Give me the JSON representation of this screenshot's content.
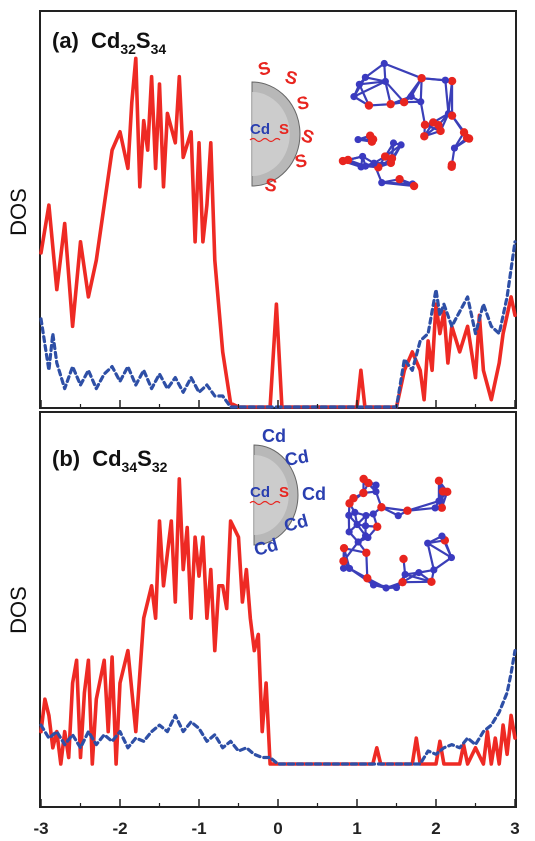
{
  "chart_data": [
    {
      "type": "line",
      "panel": "(a)",
      "title": {
        "label": "(a)",
        "el1": "Cd",
        "n1": "32",
        "el2": "S",
        "n2": "34"
      },
      "ylabel": "DOS",
      "xlim": [
        -3,
        3
      ],
      "ylim": [
        0,
        1
      ],
      "shell_label": "S",
      "core_label": {
        "cd": "Cd",
        "s": "S"
      },
      "series": [
        {
          "color": "#ee2a24",
          "style": "solid",
          "points": [
            [
              -3.0,
              0.42
            ],
            [
              -2.9,
              0.55
            ],
            [
              -2.8,
              0.32
            ],
            [
              -2.7,
              0.5
            ],
            [
              -2.6,
              0.22
            ],
            [
              -2.5,
              0.45
            ],
            [
              -2.4,
              0.3
            ],
            [
              -2.3,
              0.4
            ],
            [
              -2.2,
              0.55
            ],
            [
              -2.1,
              0.7
            ],
            [
              -2.0,
              0.75
            ],
            [
              -1.9,
              0.65
            ],
            [
              -1.85,
              0.83
            ],
            [
              -1.8,
              0.95
            ],
            [
              -1.75,
              0.6
            ],
            [
              -1.7,
              0.78
            ],
            [
              -1.65,
              0.7
            ],
            [
              -1.6,
              0.9
            ],
            [
              -1.55,
              0.65
            ],
            [
              -1.5,
              0.88
            ],
            [
              -1.45,
              0.6
            ],
            [
              -1.4,
              0.8
            ],
            [
              -1.3,
              0.72
            ],
            [
              -1.25,
              0.9
            ],
            [
              -1.2,
              0.68
            ],
            [
              -1.1,
              0.75
            ],
            [
              -1.05,
              0.45
            ],
            [
              -1.0,
              0.72
            ],
            [
              -0.95,
              0.45
            ],
            [
              -0.9,
              0.55
            ],
            [
              -0.85,
              0.72
            ],
            [
              -0.8,
              0.4
            ],
            [
              -0.7,
              0.15
            ],
            [
              -0.6,
              0.01
            ],
            [
              -0.5,
              0.0
            ],
            [
              -0.3,
              0.0
            ],
            [
              -0.1,
              0.0
            ],
            [
              -0.02,
              0.28
            ],
            [
              0.05,
              0.0
            ],
            [
              0.5,
              0.0
            ],
            [
              1.0,
              0.0
            ],
            [
              1.05,
              0.1
            ],
            [
              1.1,
              0.0
            ],
            [
              1.5,
              0.0
            ],
            [
              1.6,
              0.1
            ],
            [
              1.7,
              0.15
            ],
            [
              1.8,
              0.1
            ],
            [
              1.85,
              0.02
            ],
            [
              1.9,
              0.18
            ],
            [
              1.95,
              0.1
            ],
            [
              2.0,
              0.28
            ],
            [
              2.05,
              0.2
            ],
            [
              2.1,
              0.26
            ],
            [
              2.15,
              0.12
            ],
            [
              2.2,
              0.22
            ],
            [
              2.3,
              0.15
            ],
            [
              2.4,
              0.22
            ],
            [
              2.5,
              0.08
            ],
            [
              2.55,
              0.25
            ],
            [
              2.6,
              0.1
            ],
            [
              2.7,
              0.02
            ],
            [
              2.8,
              0.12
            ],
            [
              2.85,
              0.2
            ],
            [
              2.95,
              0.3
            ],
            [
              3.0,
              0.25
            ]
          ]
        },
        {
          "color": "#2e4fa6",
          "style": "dashed",
          "points": [
            [
              -3.0,
              0.24
            ],
            [
              -2.9,
              0.1
            ],
            [
              -2.85,
              0.2
            ],
            [
              -2.8,
              0.12
            ],
            [
              -2.7,
              0.05
            ],
            [
              -2.6,
              0.11
            ],
            [
              -2.5,
              0.06
            ],
            [
              -2.4,
              0.1
            ],
            [
              -2.3,
              0.05
            ],
            [
              -2.2,
              0.09
            ],
            [
              -2.1,
              0.11
            ],
            [
              -2.0,
              0.07
            ],
            [
              -1.9,
              0.11
            ],
            [
              -1.8,
              0.06
            ],
            [
              -1.7,
              0.1
            ],
            [
              -1.6,
              0.05
            ],
            [
              -1.5,
              0.09
            ],
            [
              -1.4,
              0.05
            ],
            [
              -1.3,
              0.08
            ],
            [
              -1.2,
              0.04
            ],
            [
              -1.1,
              0.08
            ],
            [
              -1.0,
              0.04
            ],
            [
              -0.9,
              0.06
            ],
            [
              -0.8,
              0.03
            ],
            [
              -0.7,
              0.03
            ],
            [
              -0.6,
              0.0
            ],
            [
              1.5,
              0.0
            ],
            [
              1.6,
              0.13
            ],
            [
              1.7,
              0.1
            ],
            [
              1.8,
              0.18
            ],
            [
              1.9,
              0.2
            ],
            [
              2.0,
              0.32
            ],
            [
              2.05,
              0.25
            ],
            [
              2.1,
              0.28
            ],
            [
              2.2,
              0.22
            ],
            [
              2.3,
              0.26
            ],
            [
              2.4,
              0.3
            ],
            [
              2.5,
              0.2
            ],
            [
              2.6,
              0.28
            ],
            [
              2.7,
              0.22
            ],
            [
              2.8,
              0.2
            ],
            [
              2.9,
              0.3
            ],
            [
              3.0,
              0.45
            ]
          ]
        }
      ]
    },
    {
      "type": "line",
      "panel": "(b)",
      "title": {
        "label": "(b)",
        "el1": "Cd",
        "n1": "34",
        "el2": "S",
        "n2": "32"
      },
      "ylabel": "DOS",
      "xlim": [
        -3,
        3
      ],
      "ylim": [
        0,
        1
      ],
      "shell_label": "Cd",
      "core_label": {
        "cd": "Cd",
        "s": "S"
      },
      "x_ticks": [
        "-3",
        "-2",
        "-1",
        "0",
        "1",
        "2",
        "3"
      ],
      "series": [
        {
          "color": "#ee2a24",
          "style": "solid",
          "points": [
            [
              -3.0,
              0.1
            ],
            [
              -2.95,
              0.2
            ],
            [
              -2.9,
              0.15
            ],
            [
              -2.85,
              0.05
            ],
            [
              -2.8,
              0.1
            ],
            [
              -2.75,
              0.0
            ],
            [
              -2.7,
              0.1
            ],
            [
              -2.65,
              0.02
            ],
            [
              -2.6,
              0.25
            ],
            [
              -2.55,
              0.32
            ],
            [
              -2.5,
              0.02
            ],
            [
              -2.45,
              0.22
            ],
            [
              -2.4,
              0.32
            ],
            [
              -2.35,
              0.0
            ],
            [
              -2.3,
              0.2
            ],
            [
              -2.2,
              0.32
            ],
            [
              -2.15,
              0.1
            ],
            [
              -2.1,
              0.33
            ],
            [
              -2.05,
              0.0
            ],
            [
              -2.0,
              0.25
            ],
            [
              -1.9,
              0.35
            ],
            [
              -1.8,
              0.1
            ],
            [
              -1.7,
              0.45
            ],
            [
              -1.6,
              0.55
            ],
            [
              -1.55,
              0.45
            ],
            [
              -1.5,
              0.75
            ],
            [
              -1.45,
              0.55
            ],
            [
              -1.4,
              0.65
            ],
            [
              -1.35,
              0.75
            ],
            [
              -1.3,
              0.5
            ],
            [
              -1.25,
              0.88
            ],
            [
              -1.2,
              0.6
            ],
            [
              -1.15,
              0.73
            ],
            [
              -1.1,
              0.45
            ],
            [
              -1.05,
              0.7
            ],
            [
              -1.0,
              0.58
            ],
            [
              -0.95,
              0.7
            ],
            [
              -0.9,
              0.45
            ],
            [
              -0.85,
              0.6
            ],
            [
              -0.8,
              0.35
            ],
            [
              -0.75,
              0.55
            ],
            [
              -0.7,
              0.55
            ],
            [
              -0.65,
              0.48
            ],
            [
              -0.6,
              0.75
            ],
            [
              -0.5,
              0.7
            ],
            [
              -0.45,
              0.5
            ],
            [
              -0.4,
              0.6
            ],
            [
              -0.35,
              0.45
            ],
            [
              -0.3,
              0.35
            ],
            [
              -0.25,
              0.4
            ],
            [
              -0.2,
              0.1
            ],
            [
              -0.15,
              0.25
            ],
            [
              -0.1,
              0.0
            ],
            [
              0.0,
              0.0
            ],
            [
              0.5,
              0.0
            ],
            [
              1.0,
              0.0
            ],
            [
              1.2,
              0.0
            ],
            [
              1.25,
              0.05
            ],
            [
              1.3,
              0.0
            ],
            [
              1.7,
              0.0
            ],
            [
              1.75,
              0.08
            ],
            [
              1.8,
              0.0
            ],
            [
              2.0,
              0.0
            ],
            [
              2.05,
              0.07
            ],
            [
              2.1,
              0.0
            ],
            [
              2.3,
              0.0
            ],
            [
              2.35,
              0.06
            ],
            [
              2.4,
              0.0
            ],
            [
              2.5,
              0.05
            ],
            [
              2.6,
              0.0
            ],
            [
              2.65,
              0.1
            ],
            [
              2.7,
              0.0
            ],
            [
              2.75,
              0.08
            ],
            [
              2.8,
              0.0
            ],
            [
              2.85,
              0.12
            ],
            [
              2.9,
              0.03
            ],
            [
              2.95,
              0.15
            ],
            [
              3.0,
              0.08
            ]
          ]
        },
        {
          "color": "#2e4fa6",
          "style": "dashed",
          "points": [
            [
              -3.0,
              0.12
            ],
            [
              -2.9,
              0.08
            ],
            [
              -2.8,
              0.1
            ],
            [
              -2.7,
              0.06
            ],
            [
              -2.6,
              0.09
            ],
            [
              -2.5,
              0.05
            ],
            [
              -2.4,
              0.1
            ],
            [
              -2.3,
              0.06
            ],
            [
              -2.2,
              0.09
            ],
            [
              -2.1,
              0.07
            ],
            [
              -2.0,
              0.1
            ],
            [
              -1.9,
              0.05
            ],
            [
              -1.8,
              0.08
            ],
            [
              -1.7,
              0.07
            ],
            [
              -1.6,
              0.1
            ],
            [
              -1.5,
              0.12
            ],
            [
              -1.4,
              0.1
            ],
            [
              -1.3,
              0.15
            ],
            [
              -1.2,
              0.1
            ],
            [
              -1.1,
              0.13
            ],
            [
              -1.0,
              0.11
            ],
            [
              -0.9,
              0.07
            ],
            [
              -0.8,
              0.09
            ],
            [
              -0.7,
              0.05
            ],
            [
              -0.6,
              0.07
            ],
            [
              -0.5,
              0.04
            ],
            [
              -0.4,
              0.05
            ],
            [
              -0.3,
              0.03
            ],
            [
              -0.2,
              0.02
            ],
            [
              -0.1,
              0.02
            ],
            [
              0.0,
              0.0
            ],
            [
              1.8,
              0.0
            ],
            [
              1.9,
              0.04
            ],
            [
              2.0,
              0.03
            ],
            [
              2.1,
              0.05
            ],
            [
              2.2,
              0.06
            ],
            [
              2.3,
              0.05
            ],
            [
              2.4,
              0.08
            ],
            [
              2.5,
              0.06
            ],
            [
              2.6,
              0.1
            ],
            [
              2.7,
              0.12
            ],
            [
              2.8,
              0.16
            ],
            [
              2.9,
              0.22
            ],
            [
              2.95,
              0.28
            ],
            [
              3.0,
              0.35
            ]
          ]
        }
      ]
    }
  ]
}
